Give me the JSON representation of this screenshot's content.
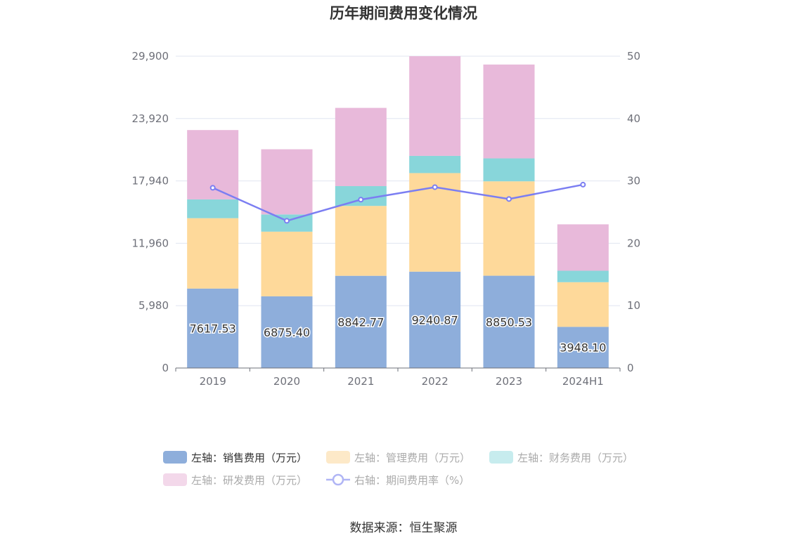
{
  "chart_data": {
    "type": "bar",
    "title": "历年期间费用变化情况",
    "source_note": "数据来源：恒生聚源",
    "categories": [
      "2019",
      "2020",
      "2021",
      "2022",
      "2023",
      "2024H1"
    ],
    "stacked": true,
    "series": [
      {
        "name": "左轴：销售费用（万元）",
        "axis": "left",
        "color": "#8eaedb",
        "values": [
          7617.53,
          6875.4,
          8842.77,
          9240.87,
          8850.53,
          3948.1
        ],
        "show_labels": true
      },
      {
        "name": "左轴：管理费用（万元）",
        "axis": "left",
        "color": "#fed99a",
        "values": [
          6750,
          6200,
          6700,
          9450,
          9050,
          4280
        ]
      },
      {
        "name": "左轴：财务费用（万元）",
        "axis": "left",
        "color": "#88d6da",
        "values": [
          1800,
          1650,
          1900,
          1650,
          2200,
          1100
        ]
      },
      {
        "name": "左轴：研发费用（万元）",
        "axis": "left",
        "color": "#e8b9da",
        "values": [
          6650,
          6250,
          7500,
          9560,
          9000,
          4450
        ]
      },
      {
        "name": "右轴：期间费用率（%）",
        "axis": "right",
        "type": "line",
        "color": "#7b7ef2",
        "values": [
          28.9,
          23.6,
          27.0,
          29.0,
          27.1,
          29.4
        ]
      }
    ],
    "left_axis": {
      "ticks": [
        "0",
        "5,980",
        "11,960",
        "17,940",
        "23,920",
        "29,900"
      ],
      "ylim": [
        0,
        29900
      ]
    },
    "right_axis": {
      "ticks": [
        "0",
        "10",
        "20",
        "30",
        "40",
        "50"
      ],
      "ylim": [
        0,
        50
      ]
    },
    "grid": true,
    "legend_position": "bottom",
    "legend_inactive_color": "#aaaaaa"
  }
}
